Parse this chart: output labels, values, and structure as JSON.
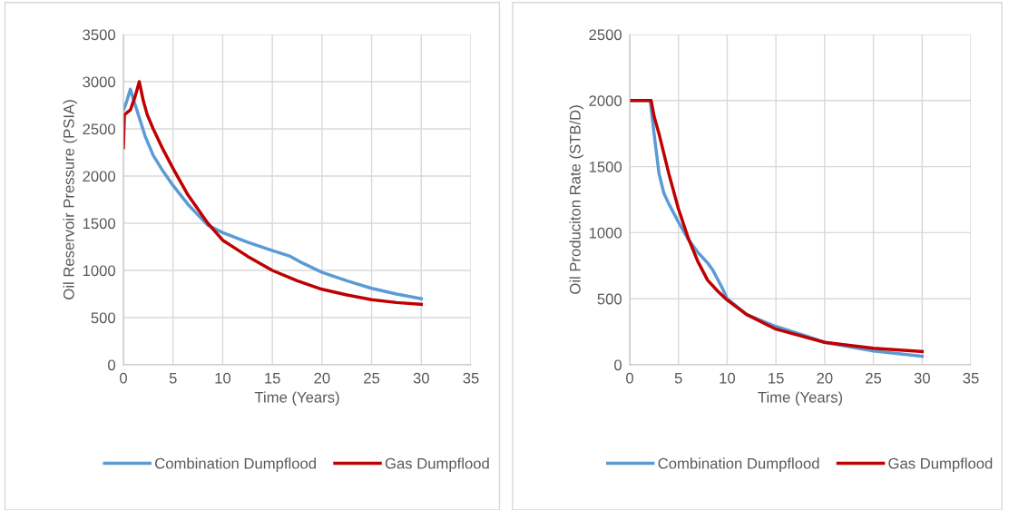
{
  "chart_data": [
    {
      "type": "line",
      "xlabel": "Time (Years)",
      "ylabel": "Oil Reservoir Pressure (PSIA)",
      "xlim": [
        0,
        35
      ],
      "xticks": [
        0,
        5,
        10,
        15,
        20,
        25,
        30,
        35
      ],
      "ylim": [
        0,
        3500
      ],
      "yticks": [
        0,
        500,
        1000,
        1500,
        2000,
        2500,
        3000,
        3500
      ],
      "grid": true,
      "legend": "bottom",
      "marker": "none",
      "line_style": "solid",
      "series": [
        {
          "name": "Combination Dumpflood",
          "color": "#5b9bd5",
          "x": [
            0,
            0.3,
            0.7,
            1.2,
            2.2,
            3,
            4,
            5,
            6.5,
            8.5,
            10,
            12.5,
            15,
            16.8,
            18,
            20,
            22.5,
            25,
            27.5,
            30
          ],
          "values": [
            2700,
            2780,
            2920,
            2750,
            2420,
            2220,
            2050,
            1900,
            1700,
            1480,
            1400,
            1300,
            1210,
            1150,
            1080,
            980,
            890,
            810,
            750,
            700
          ]
        },
        {
          "name": "Gas Dumpflood",
          "color": "#c00000",
          "x": [
            0,
            0.1,
            0.7,
            1.2,
            1.6,
            2.0,
            2.4,
            3,
            4,
            5,
            6.5,
            8.5,
            10,
            12.5,
            15,
            17.5,
            20,
            22.5,
            25,
            27.5,
            30
          ],
          "values": [
            2300,
            2650,
            2700,
            2850,
            3000,
            2800,
            2650,
            2500,
            2280,
            2080,
            1800,
            1500,
            1320,
            1150,
            1000,
            890,
            800,
            740,
            690,
            660,
            640
          ]
        }
      ]
    },
    {
      "type": "line",
      "xlabel": "Time (Years)",
      "ylabel": "Oil Produciton Rate (STB/D)",
      "xlim": [
        0,
        35
      ],
      "xticks": [
        0,
        5,
        10,
        15,
        20,
        25,
        30,
        35
      ],
      "ylim": [
        0,
        2500
      ],
      "yticks": [
        0,
        500,
        1000,
        1500,
        2000,
        2500
      ],
      "grid": true,
      "legend": "bottom",
      "marker": "none",
      "line_style": "solid",
      "series": [
        {
          "name": "Combination Dumpflood",
          "color": "#5b9bd5",
          "x": [
            0,
            2.1,
            2.5,
            3,
            3.5,
            4,
            5,
            6,
            7,
            8,
            8.5,
            9.5,
            10,
            12,
            15,
            18,
            20,
            25,
            30
          ],
          "values": [
            2000,
            2000,
            1750,
            1450,
            1300,
            1220,
            1080,
            950,
            850,
            770,
            720,
            580,
            500,
            380,
            290,
            220,
            170,
            105,
            65
          ]
        },
        {
          "name": "Gas Dumpflood",
          "color": "#c00000",
          "x": [
            0,
            2.2,
            2.5,
            3,
            4,
            5,
            6,
            7,
            8,
            9,
            10,
            12,
            15,
            20,
            25,
            30
          ],
          "values": [
            2000,
            2000,
            1880,
            1750,
            1450,
            1180,
            960,
            780,
            640,
            560,
            490,
            380,
            270,
            170,
            125,
            100
          ]
        }
      ]
    }
  ]
}
